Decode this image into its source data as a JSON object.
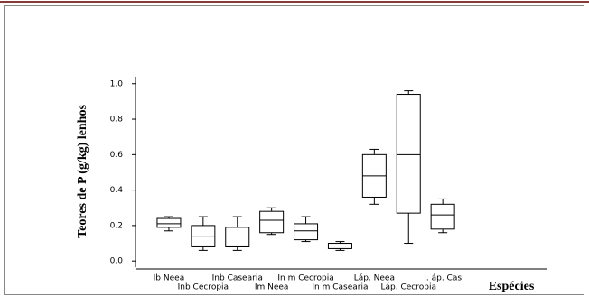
{
  "chart_data": {
    "type": "box",
    "ylabel": "Teores de P (g/kg) lenhos",
    "xlabel": "Espécies",
    "categories": [
      "Ib Neea",
      "Inb Cecropia",
      "Inb Casearia",
      "Im Neea",
      "In m Cecropia",
      "In m Casearia",
      "Láp. Neea",
      "Láp. Cecropia",
      "I. áp. Cas"
    ],
    "boxes": [
      {
        "min": 0.17,
        "q1": 0.19,
        "median": 0.21,
        "q3": 0.24,
        "max": 0.25
      },
      {
        "min": 0.06,
        "q1": 0.08,
        "median": 0.14,
        "q3": 0.2,
        "max": 0.25
      },
      {
        "min": 0.06,
        "q1": 0.08,
        "median": 0.08,
        "q3": 0.19,
        "max": 0.25
      },
      {
        "min": 0.15,
        "q1": 0.16,
        "median": 0.23,
        "q3": 0.28,
        "max": 0.3
      },
      {
        "min": 0.11,
        "q1": 0.12,
        "median": 0.17,
        "q3": 0.21,
        "max": 0.25
      },
      {
        "min": 0.06,
        "q1": 0.07,
        "median": 0.09,
        "q3": 0.1,
        "max": 0.11
      },
      {
        "min": 0.32,
        "q1": 0.36,
        "median": 0.48,
        "q3": 0.6,
        "max": 0.63
      },
      {
        "min": 0.1,
        "q1": 0.27,
        "median": 0.6,
        "q3": 0.94,
        "max": 0.96
      },
      {
        "min": 0.16,
        "q1": 0.18,
        "median": 0.26,
        "q3": 0.32,
        "max": 0.35
      }
    ],
    "color": "#000000",
    "ylim": [
      -0.05,
      1.07
    ],
    "yticks": [
      {
        "value": 0,
        "label": "0.0"
      },
      0.2,
      0.4,
      0.6,
      0.8,
      {
        "value": 1,
        "label": "1.0"
      }
    ]
  }
}
